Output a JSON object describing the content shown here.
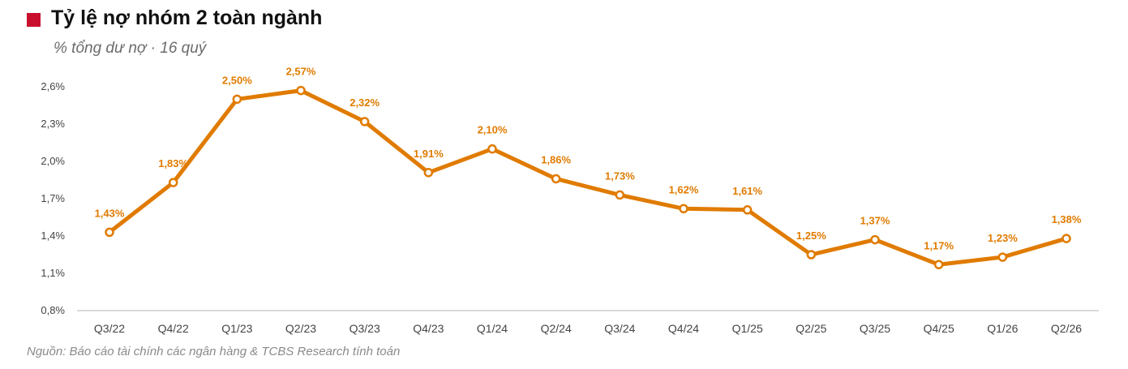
{
  "header": {
    "title": "Tỷ lệ nợ nhóm 2 toàn ngành",
    "subtitle": "% tổng dư nợ · 16 quý",
    "marker_color": "#c8102e"
  },
  "footer": {
    "source": "Nguồn: Báo cáo tài chính các ngân hàng & TCBS Research tính toán"
  },
  "chart_data": {
    "type": "line",
    "title": "Tỷ lệ nợ nhóm 2 toàn ngành",
    "subtitle": "% tổng dư nợ · 16 quý",
    "categories": [
      "Q3/22",
      "Q4/22",
      "Q1/23",
      "Q2/23",
      "Q3/23",
      "Q4/23",
      "Q1/24",
      "Q2/24",
      "Q3/24",
      "Q4/24",
      "Q1/25",
      "Q2/25",
      "Q3/25",
      "Q4/25",
      "Q1/26",
      "Q2/26"
    ],
    "series": [
      {
        "values": [
          1.43,
          1.83,
          2.5,
          2.57,
          2.32,
          1.91,
          2.1,
          1.86,
          1.73,
          1.62,
          1.61,
          1.25,
          1.37,
          1.17,
          1.23,
          1.38
        ],
        "labels": [
          "1,43%",
          "1,83%",
          "2,50%",
          "2,57%",
          "2,32%",
          "1,91%",
          "2,10%",
          "1,86%",
          "1,73%",
          "1,62%",
          "1,61%",
          "1,25%",
          "1,37%",
          "1,17%",
          "1,23%",
          "1,38%"
        ],
        "color": "#e07b00"
      }
    ],
    "ylim": [
      0.8,
      2.6
    ],
    "yticks": [
      0.8,
      1.1,
      1.4,
      1.7,
      2.0,
      2.3,
      2.6
    ],
    "ytick_labels": [
      "0,8%",
      "1,1%",
      "1,4%",
      "1,7%",
      "2,0%",
      "2,3%",
      "2,6%"
    ],
    "xlabel": "",
    "ylabel": "",
    "grid": false,
    "legend": "none"
  }
}
